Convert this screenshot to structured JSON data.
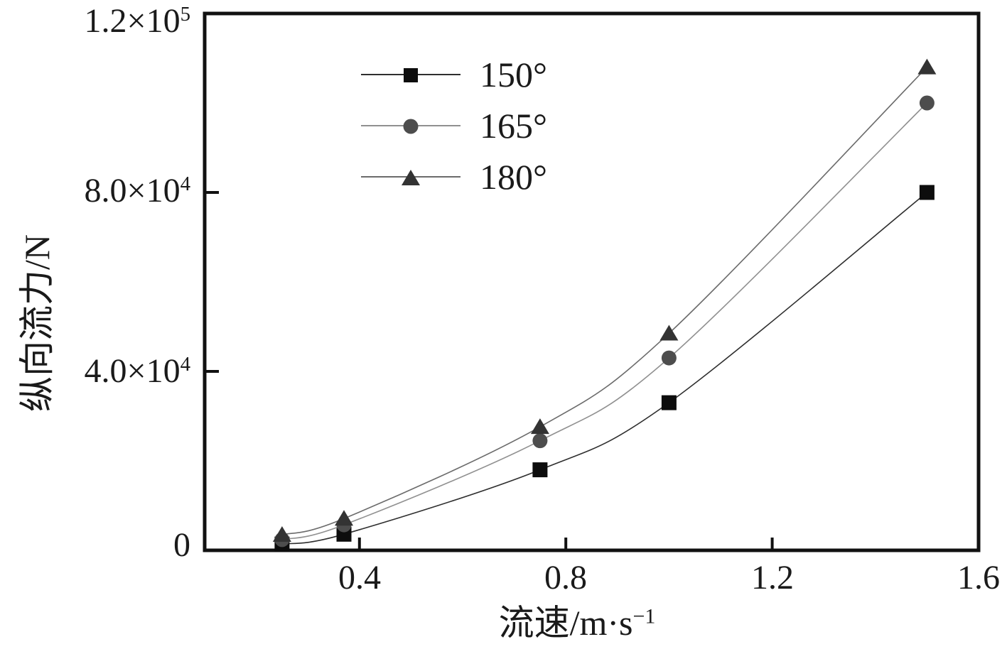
{
  "figure": {
    "background": "#ffffff",
    "text_color": "#1a1a1a",
    "frame_color": "#111111"
  },
  "axes": {
    "y_label": {
      "text": "纵向流力/N"
    },
    "x_label": {
      "base": "流速/m·s",
      "exp": "−1"
    },
    "y_ticks": [
      {
        "value": 0,
        "base": "0",
        "exp": ""
      },
      {
        "value": 40000,
        "base": "4.0×10",
        "exp": "4"
      },
      {
        "value": 80000,
        "base": "8.0×10",
        "exp": "4"
      },
      {
        "value": 120000,
        "base": "1.2×10",
        "exp": "5"
      }
    ],
    "x_ticks": [
      {
        "value": 0.4,
        "label": "0.4"
      },
      {
        "value": 0.8,
        "label": "0.8"
      },
      {
        "value": 1.2,
        "label": "1.2"
      },
      {
        "value": 1.6,
        "label": "1.6"
      }
    ]
  },
  "legend": [
    {
      "label": "150°",
      "marker": "square",
      "marker_color": "#0d0d0d",
      "line_color": "#2e2e2e"
    },
    {
      "label": "165°",
      "marker": "circle",
      "marker_color": "#4d4d4d",
      "line_color": "#909090"
    },
    {
      "label": "180°",
      "marker": "triangle",
      "marker_color": "#333333",
      "line_color": "#6b6b6b"
    }
  ],
  "chart_data": {
    "type": "line",
    "title": "",
    "xlabel": "流速/m·s⁻¹",
    "ylabel": "纵向流力/N",
    "xlim": [
      0.1,
      1.6
    ],
    "ylim": [
      0,
      120000
    ],
    "x_tick_values": [
      0.4,
      0.8,
      1.2,
      1.6
    ],
    "y_tick_values": [
      0,
      40000,
      80000,
      120000
    ],
    "grid": false,
    "legend_position": "upper-left-inside",
    "x": [
      0.25,
      0.37,
      0.75,
      1.0,
      1.5
    ],
    "series": [
      {
        "name": "150°",
        "marker": "square",
        "marker_color": "#0d0d0d",
        "line_color": "#2e2e2e",
        "values": [
          1400,
          3600,
          18000,
          33000,
          80000
        ]
      },
      {
        "name": "165°",
        "marker": "circle",
        "marker_color": "#4d4d4d",
        "line_color": "#909090",
        "values": [
          2400,
          5700,
          24500,
          43000,
          100000
        ]
      },
      {
        "name": "180°",
        "marker": "triangle",
        "marker_color": "#333333",
        "line_color": "#6b6b6b",
        "values": [
          3500,
          7100,
          27600,
          48500,
          108000
        ]
      }
    ]
  }
}
